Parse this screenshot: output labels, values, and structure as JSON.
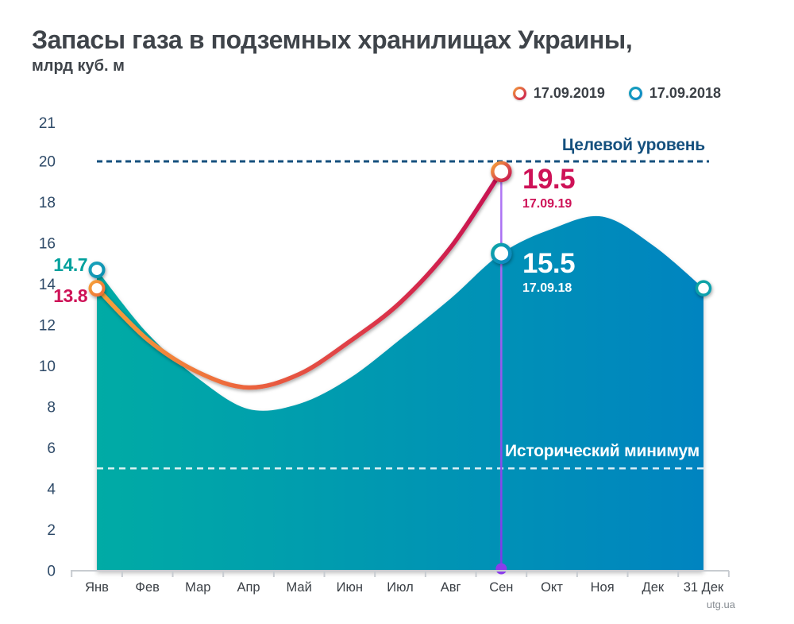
{
  "title": "Запасы газа в подземных хранилищах Украины,",
  "subtitle": "млрд куб. м",
  "legend": {
    "items": [
      {
        "label": "17.09.2019",
        "ring": [
          "#F6A33A",
          "#C60F52"
        ]
      },
      {
        "label": "17.09.2018",
        "ring": [
          "#17A3BC",
          "#0E87C6"
        ]
      }
    ]
  },
  "annotations": {
    "target_label": "Целевой уровень",
    "min_label": "Исторический минимум",
    "value_2019": "19.5",
    "date_2019": "17.09.19",
    "value_2018": "15.5",
    "date_2018": "17.09.18",
    "start_2018": "14.7",
    "start_2019": "13.8"
  },
  "watermark": "utg.ua",
  "chart_data": {
    "type": "area+line",
    "x_categories": [
      "Янв",
      "Фев",
      "Мар",
      "Апр",
      "Май",
      "Июн",
      "Июл",
      "Авг",
      "Сен",
      "Окт",
      "Ноя",
      "Дек",
      "31 Дек"
    ],
    "y_ticks": [
      21,
      20,
      18,
      16,
      14,
      12,
      10,
      8,
      6,
      4,
      2,
      0
    ],
    "ylim": [
      0,
      21
    ],
    "grid": false,
    "target_level": 20,
    "historical_min": 5,
    "series": [
      {
        "name": "17.09.2018",
        "type": "area",
        "values": [
          14.7,
          11.6,
          9.4,
          7.9,
          8.15,
          9.4,
          11.3,
          13.3,
          15.5,
          16.7,
          17.3,
          15.9,
          13.8
        ],
        "gradient": [
          "#00ABA5",
          "#0097B2",
          "#0084C0"
        ]
      },
      {
        "name": "17.09.2019",
        "type": "line",
        "values": [
          13.8,
          11.3,
          9.7,
          8.95,
          9.6,
          11.2,
          13.1,
          15.8,
          19.5
        ],
        "gradient": [
          "#F6A33A",
          "#ED6A3C",
          "#DD3948",
          "#C60F52"
        ]
      }
    ],
    "markers": [
      {
        "month_index": 0,
        "value": 14.7,
        "ring": [
          "#17A3BC",
          "#0E8FB0"
        ],
        "r": 8.5,
        "sw": 4
      },
      {
        "month_index": 0,
        "value": 13.8,
        "ring": [
          "#F6A33A",
          "#EE6B36"
        ],
        "r": 8.5,
        "sw": 4
      },
      {
        "month_index": 8,
        "value": 19.5,
        "ring": [
          "#F6A33A",
          "#C60F52"
        ],
        "r": 11,
        "sw": 4.5
      },
      {
        "month_index": 8,
        "value": 15.5,
        "ring": [
          "#0FA5A5",
          "#0E87C6"
        ],
        "r": 11,
        "sw": 4.5
      },
      {
        "month_index": 12,
        "value": 13.8,
        "ring": [
          "#0BA49F",
          "#0F9FB2"
        ],
        "r": 8.5,
        "sw": 3.5
      }
    ]
  },
  "colors": {
    "title": "#3F444A",
    "y_labels": "#2E4A68",
    "month_labels": "#3B4046",
    "axis_line": "#C8CCD1",
    "target": "#15507E",
    "min_line": "#FFFFFF",
    "crimson": "#CE1257",
    "teal": "#00A09C",
    "purple_line": [
      "#B27AF5",
      "#7C39E8"
    ],
    "purple_dot": "#8B3DEB",
    "watermark": "#878D93"
  }
}
